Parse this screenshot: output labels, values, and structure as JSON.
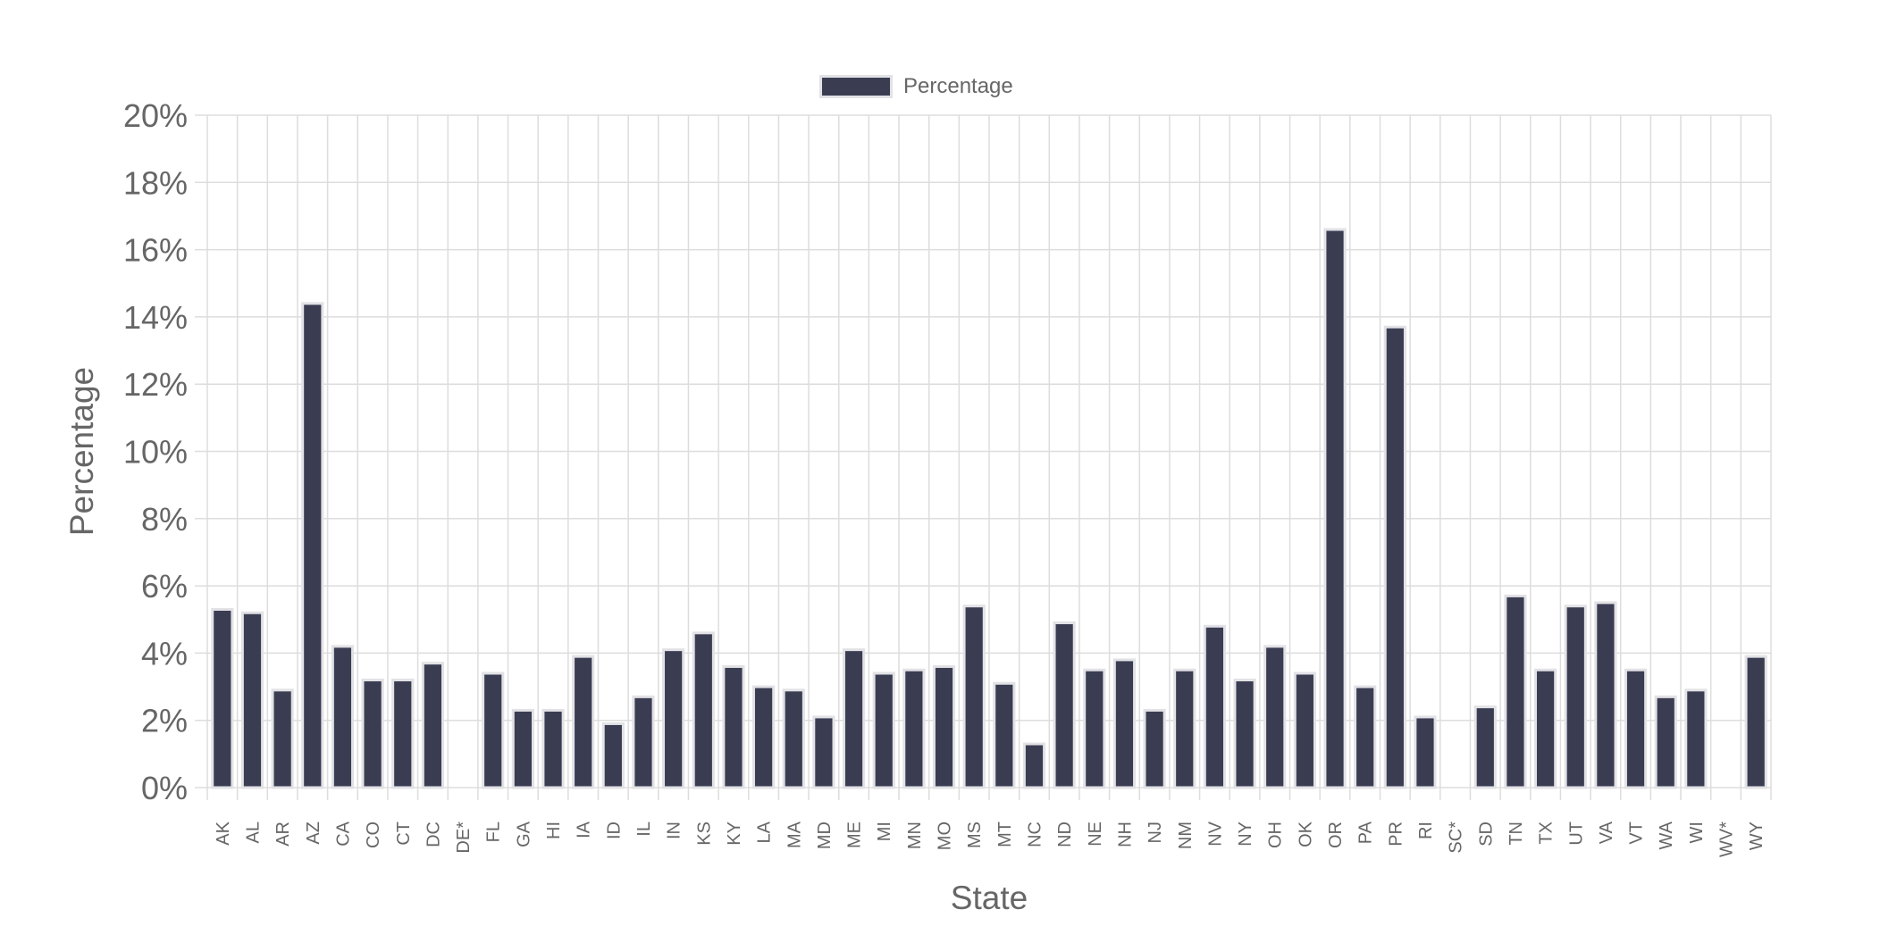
{
  "colors": {
    "bar_fill": "#3a3d52",
    "bar_border": "#e2e2e6",
    "grid": "#dddddd",
    "axis_text": "#666666"
  },
  "chart_data": {
    "type": "bar",
    "title": "",
    "xlabel": "State",
    "ylabel": "Percentage",
    "ylim": [
      0,
      20
    ],
    "y_tick_step": 2,
    "y_tick_suffix": "%",
    "grid": true,
    "legend_position": "top-center",
    "categories": [
      "AK",
      "AL",
      "AR",
      "AZ",
      "CA",
      "CO",
      "CT",
      "DC",
      "DE*",
      "FL",
      "GA",
      "HI",
      "IA",
      "ID",
      "IL",
      "IN",
      "KS",
      "KY",
      "LA",
      "MA",
      "MD",
      "ME",
      "MI",
      "MN",
      "MO",
      "MS",
      "MT",
      "NC",
      "ND",
      "NE",
      "NH",
      "NJ",
      "NM",
      "NV",
      "NY",
      "OH",
      "OK",
      "OR",
      "PA",
      "PR",
      "RI",
      "SC*",
      "SD",
      "TN",
      "TX",
      "UT",
      "VA",
      "VT",
      "WA",
      "WI",
      "WV*",
      "WY"
    ],
    "series": [
      {
        "name": "Percentage",
        "values": [
          5.3,
          5.2,
          2.9,
          14.4,
          4.2,
          3.2,
          3.2,
          3.7,
          0,
          3.4,
          2.3,
          2.3,
          3.9,
          1.9,
          2.7,
          4.1,
          4.6,
          3.6,
          3.0,
          2.9,
          2.1,
          4.1,
          3.4,
          3.5,
          3.6,
          5.4,
          3.1,
          1.3,
          4.9,
          3.5,
          3.8,
          2.3,
          3.5,
          4.8,
          3.2,
          4.2,
          3.4,
          16.6,
          3.0,
          13.7,
          2.1,
          0,
          2.4,
          5.7,
          3.5,
          5.4,
          5.5,
          3.5,
          2.7,
          2.9,
          0,
          3.9
        ]
      }
    ]
  }
}
